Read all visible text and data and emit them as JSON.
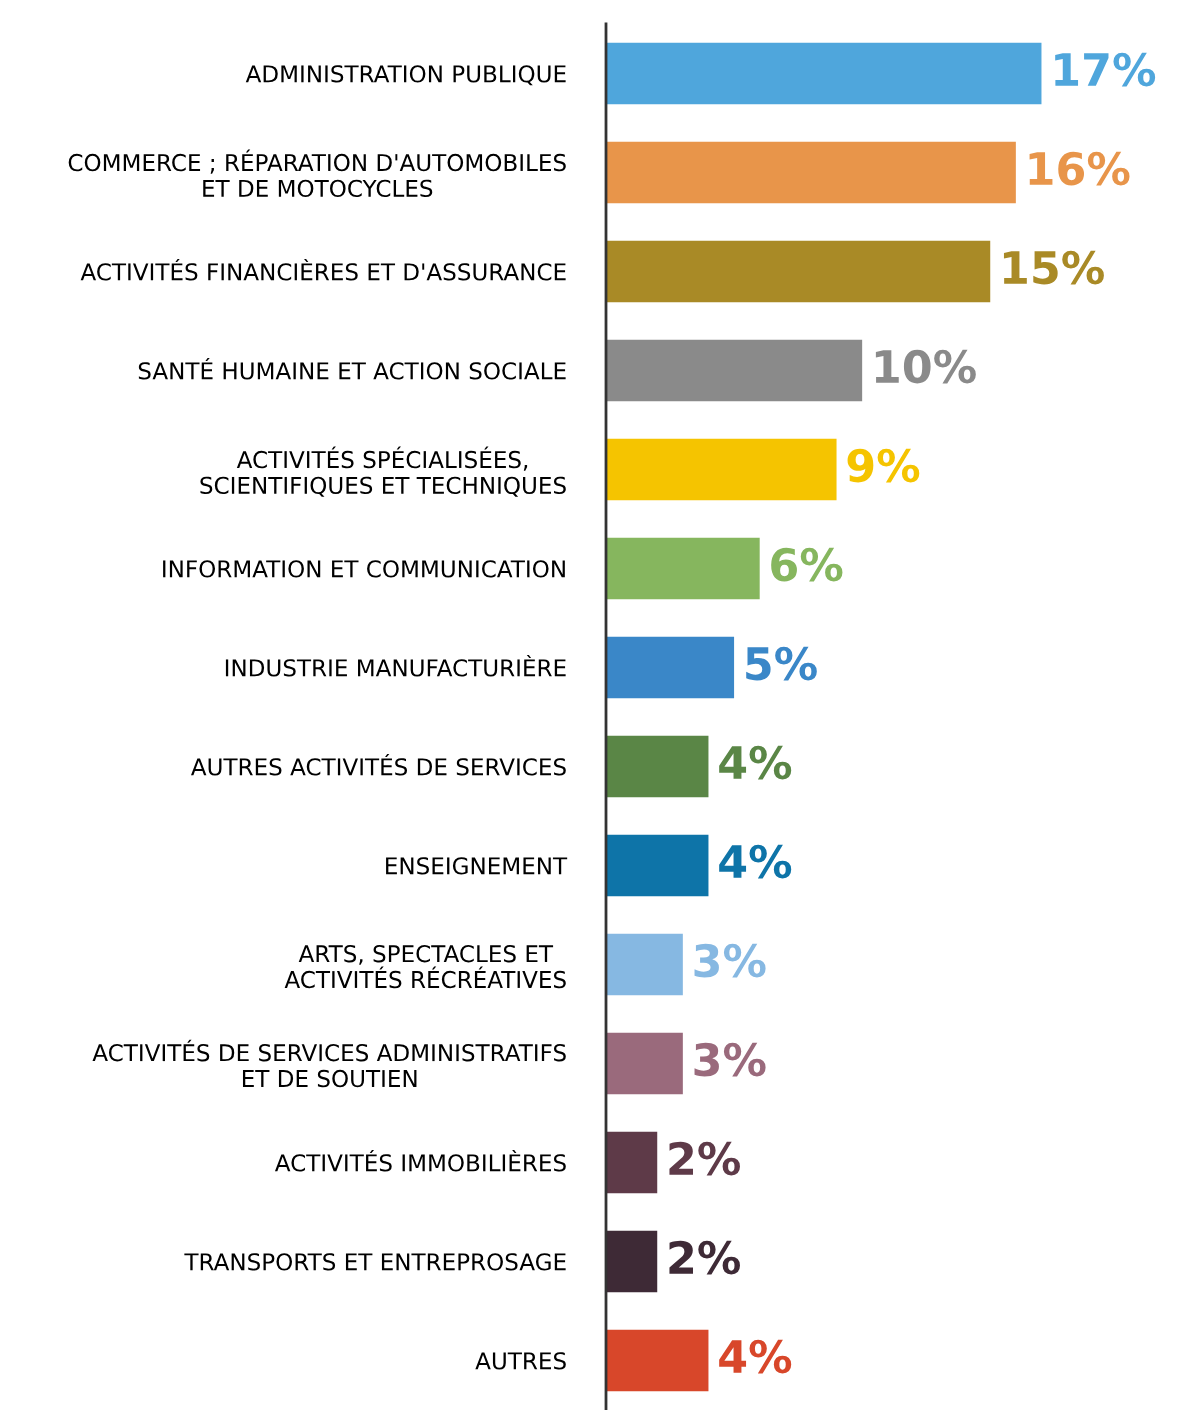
{
  "chart_data": {
    "type": "bar",
    "orientation": "horizontal",
    "categories": [
      "ADMINISTRATION PUBLIQUE",
      "COMMERCE ; RÉPARATION D'AUTOMOBILES\nET DE MOTOCYCLES",
      "ACTIVITÉS FINANCIÈRES ET D'ASSURANCE",
      "SANTÉ HUMAINE ET ACTION SOCIALE",
      "ACTIVITÉS SPÉCIALISÉES,\nSCIENTIFIQUES ET TECHNIQUES",
      "INFORMATION ET COMMUNICATION",
      "INDUSTRIE MANUFACTURIÈRE",
      "AUTRES ACTIVITÉS DE SERVICES",
      "ENSEIGNEMENT",
      "ARTS, SPECTACLES ET\nACTIVITÉS RÉCRÉATIVES",
      "ACTIVITÉS DE SERVICES ADMINISTRATIFS\nET DE SOUTIEN",
      "ACTIVITÉS IMMOBILIÈRES",
      "TRANSPORTS ET ENTREPROSAGE",
      "AUTRES"
    ],
    "values": [
      17,
      16,
      15,
      10,
      9,
      6,
      5,
      4,
      4,
      3,
      3,
      2,
      2,
      4
    ],
    "value_labels": [
      "17%",
      "16%",
      "15%",
      "10%",
      "9%",
      "6%",
      "5%",
      "4%",
      "4%",
      "3%",
      "3%",
      "2%",
      "2%",
      "4%"
    ],
    "colors": [
      "#4fa6dc",
      "#e8954a",
      "#a98a26",
      "#8a8a8a",
      "#f5c400",
      "#86b65e",
      "#3a87c8",
      "#5a8646",
      "#0e74a8",
      "#86b8e2",
      "#9a6a7c",
      "#5e3a48",
      "#3e2a36",
      "#d8472a"
    ]
  }
}
